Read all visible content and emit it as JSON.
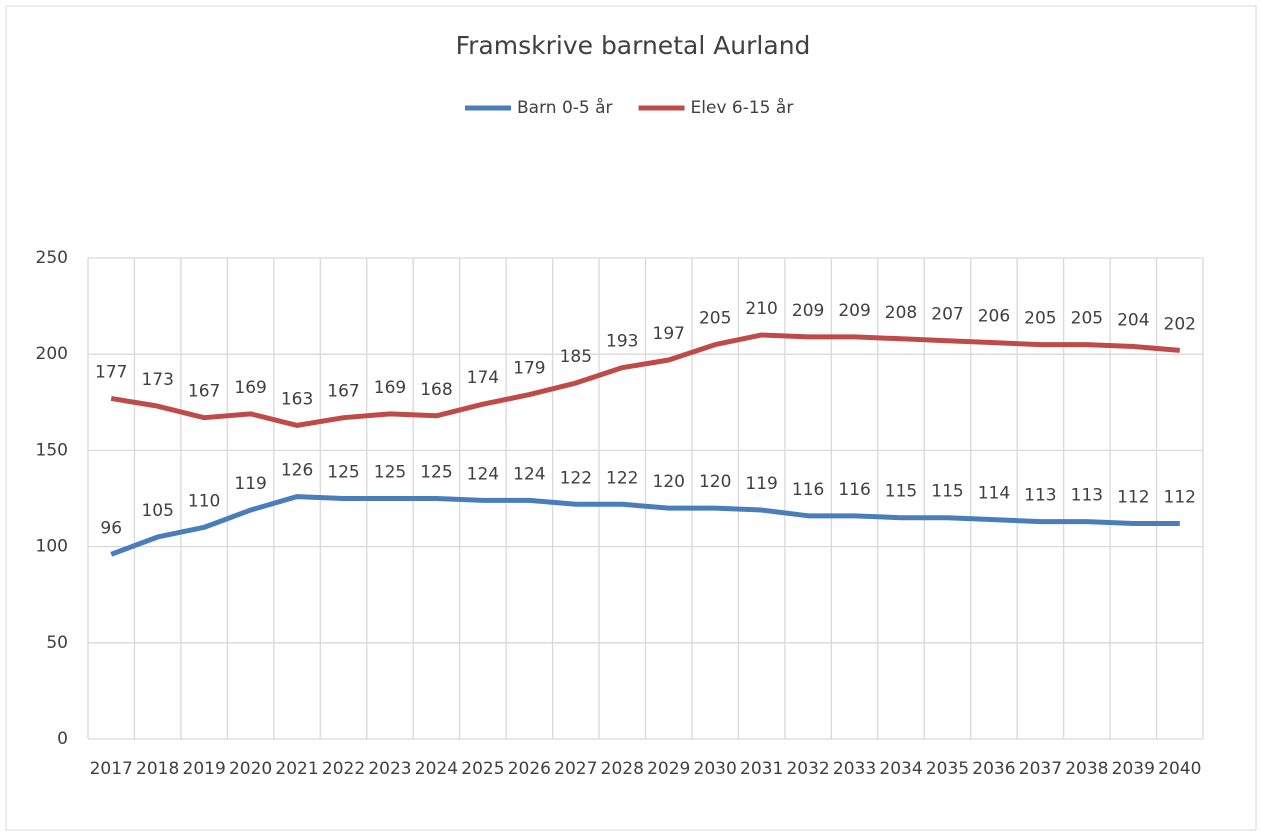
{
  "chart_data": {
    "type": "line",
    "title": "Framskrive barnetal Aurland",
    "categories": [
      "2017",
      "2018",
      "2019",
      "2020",
      "2021",
      "2022",
      "2023",
      "2024",
      "2025",
      "2026",
      "2027",
      "2028",
      "2029",
      "2030",
      "2031",
      "2032",
      "2033",
      "2034",
      "2035",
      "2036",
      "2037",
      "2038",
      "2039",
      "2040"
    ],
    "series": [
      {
        "name": "Barn 0-5 år",
        "color": "#4a7ebb",
        "values": [
          96,
          105,
          110,
          119,
          126,
          125,
          125,
          125,
          124,
          124,
          122,
          122,
          120,
          120,
          119,
          116,
          116,
          115,
          115,
          114,
          113,
          113,
          112,
          112
        ]
      },
      {
        "name": "Elev 6-15 år",
        "color": "#be4b48",
        "values": [
          177,
          173,
          167,
          169,
          163,
          167,
          169,
          168,
          174,
          179,
          185,
          193,
          197,
          205,
          210,
          209,
          209,
          208,
          207,
          206,
          205,
          205,
          204,
          202
        ]
      }
    ],
    "ylim": [
      0,
      250
    ],
    "yticks": [
      0,
      50,
      100,
      150,
      200,
      250
    ],
    "grid": true,
    "legend": "top"
  }
}
